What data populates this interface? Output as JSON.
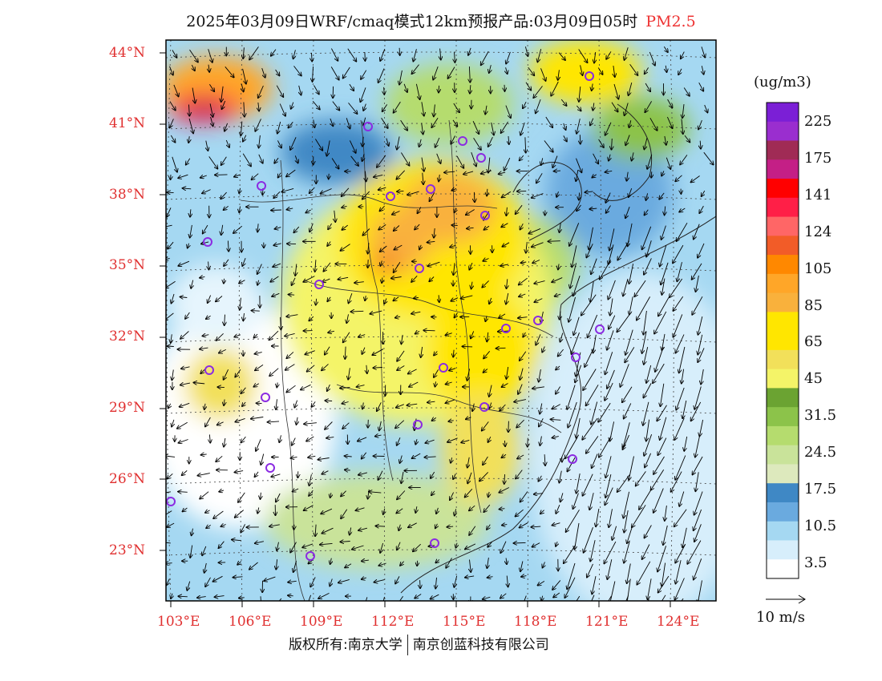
{
  "title": {
    "main": "2025年03月09日WRF/cmaq模式12km预报产品:03月09日05时",
    "species": "PM2.5"
  },
  "lat_labels": [
    "44°N",
    "41°N",
    "38°N",
    "35°N",
    "32°N",
    "29°N",
    "26°N",
    "23°N"
  ],
  "lon_labels": [
    "103°E",
    "106°E",
    "109°E",
    "112°E",
    "115°E",
    "118°E",
    "121°E",
    "124°E"
  ],
  "colorbar": {
    "unit": "(ug/m3)",
    "labels": [
      "225",
      "175",
      "141",
      "124",
      "105",
      "85",
      "65",
      "45",
      "31.5",
      "24.5",
      "17.5",
      "10.5",
      "3.5"
    ],
    "colors": [
      "#7b1fd6",
      "#9a2ecf",
      "#a02b55",
      "#c41f86",
      "#ff0000",
      "#ff1f47",
      "#ff6666",
      "#f25c28",
      "#ff8800",
      "#ffa628",
      "#f9b13c",
      "#ffe600",
      "#ffe600",
      "#f2e05a",
      "#f4f468",
      "#6ba332",
      "#8cc34a",
      "#b5dc6e",
      "#c9e39a",
      "#dde9bd",
      "#3f88c5",
      "#6aaadf",
      "#a5d8f2",
      "#d7eefb",
      "#ffffff"
    ]
  },
  "wind_legend": "10 m/s",
  "footer": {
    "left": "版权所有:南京大学",
    "right": "南京创蓝科技有限公司"
  }
}
